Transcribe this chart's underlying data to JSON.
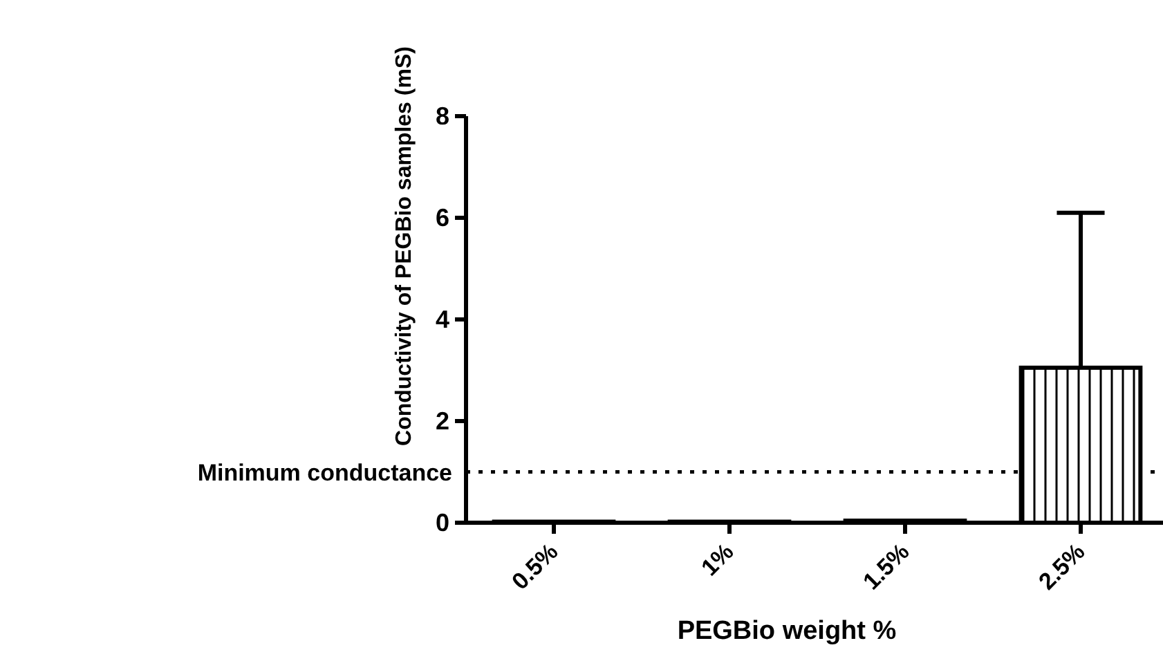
{
  "chart_data": {
    "type": "bar",
    "xlabel": "PEGBio weight %",
    "ylabel": "Conductivity of PEGBio samples (mS)",
    "categories": [
      "0.5%",
      "1%",
      "1.5%",
      "2.5%"
    ],
    "values": [
      0.02,
      0.02,
      0.04,
      3.05
    ],
    "errors": [
      null,
      null,
      null,
      3.05
    ],
    "color": "#000000",
    "ylim": [
      0,
      8
    ],
    "yticks": [
      0,
      2,
      4,
      6,
      8
    ],
    "grid": false,
    "ref_lines": [
      {
        "axis": "y",
        "value": 1,
        "label": "Minimum conductance",
        "line_style": "dotted"
      }
    ]
  }
}
